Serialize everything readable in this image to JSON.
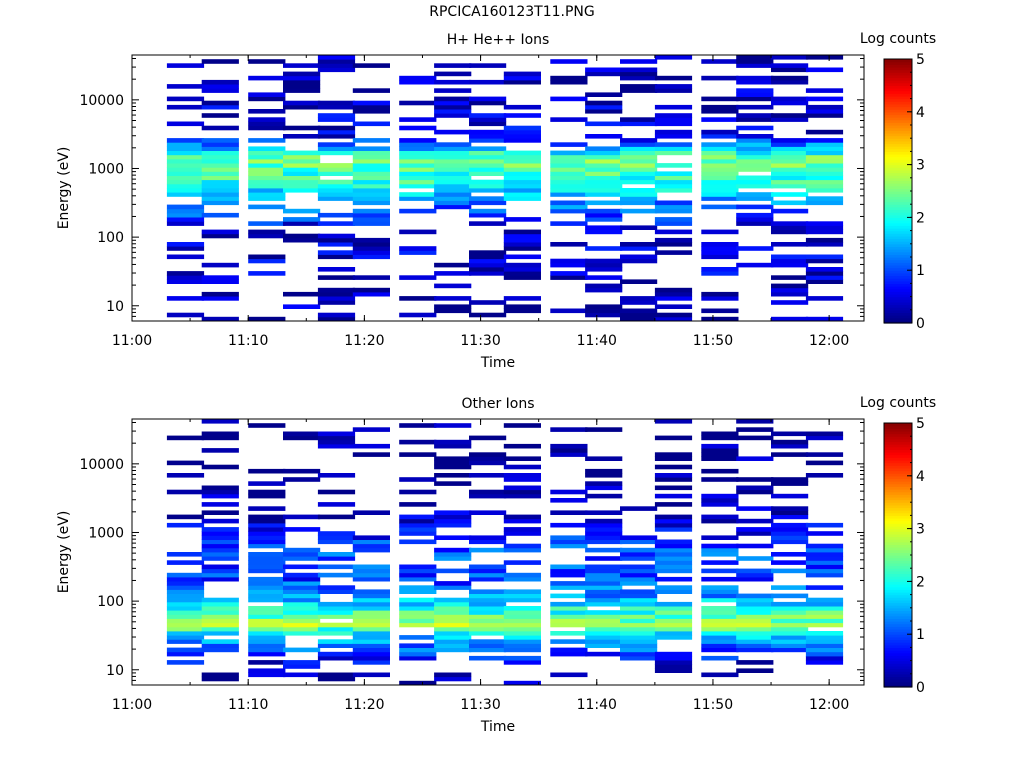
{
  "figure": {
    "title": "RPCICA160123T11.PNG"
  },
  "chart_data": [
    {
      "type": "heatmap",
      "title": "H+ He++ Ions",
      "xlabel": "Time",
      "ylabel": "Energy (eV)",
      "yscale": "log",
      "xlim": [
        "11:00",
        "12:03"
      ],
      "ylim": [
        6,
        45000
      ],
      "x_ticks": [
        "11:00",
        "11:10",
        "11:20",
        "11:30",
        "11:40",
        "11:50",
        "12:00"
      ],
      "y_ticks": [
        "10",
        "100",
        "1000",
        "10000"
      ],
      "colorbar": {
        "label": "Log counts",
        "min": 0,
        "max": 5,
        "ticks": [
          "0",
          "1",
          "2",
          "3",
          "4",
          "5"
        ]
      },
      "time_bins": [
        "11:03",
        "11:06",
        "11:10",
        "11:13",
        "11:16",
        "11:19",
        "11:23",
        "11:26",
        "11:29",
        "11:32",
        "11:36",
        "11:39",
        "11:42",
        "11:45",
        "11:49",
        "11:52",
        "11:55",
        "11:58"
      ],
      "energy_profile": [
        {
          "energy": 20,
          "log_counts": 0.2
        },
        {
          "energy": 40,
          "log_counts": 0.5
        },
        {
          "energy": 100,
          "log_counts": 0.3
        },
        {
          "energy": 300,
          "log_counts": 1.2
        },
        {
          "energy": 600,
          "log_counts": 2.0
        },
        {
          "energy": 1400,
          "log_counts": 2.4
        },
        {
          "energy": 3000,
          "log_counts": 0.5
        },
        {
          "energy": 10000,
          "log_counts": 0.3
        },
        {
          "energy": 30000,
          "log_counts": 0.2
        }
      ]
    },
    {
      "type": "heatmap",
      "title": "Other Ions",
      "xlabel": "Time",
      "ylabel": "Energy (eV)",
      "yscale": "log",
      "xlim": [
        "11:00",
        "12:03"
      ],
      "ylim": [
        6,
        45000
      ],
      "x_ticks": [
        "11:00",
        "11:10",
        "11:20",
        "11:30",
        "11:40",
        "11:50",
        "12:00"
      ],
      "y_ticks": [
        "10",
        "100",
        "1000",
        "10000"
      ],
      "colorbar": {
        "label": "Log counts",
        "min": 0,
        "max": 5,
        "ticks": [
          "0",
          "1",
          "2",
          "3",
          "4",
          "5"
        ]
      },
      "time_bins": [
        "11:03",
        "11:06",
        "11:10",
        "11:13",
        "11:16",
        "11:19",
        "11:23",
        "11:26",
        "11:29",
        "11:32",
        "11:36",
        "11:39",
        "11:42",
        "11:45",
        "11:49",
        "11:52",
        "11:55",
        "11:58"
      ],
      "energy_profile": [
        {
          "energy": 10,
          "log_counts": 0.2
        },
        {
          "energy": 30,
          "log_counts": 1.5
        },
        {
          "energy": 45,
          "log_counts": 2.6
        },
        {
          "energy": 60,
          "log_counts": 2.3
        },
        {
          "energy": 100,
          "log_counts": 1.6
        },
        {
          "energy": 200,
          "log_counts": 0.9
        },
        {
          "energy": 600,
          "log_counts": 1.0
        },
        {
          "energy": 1500,
          "log_counts": 0.3
        },
        {
          "energy": 5000,
          "log_counts": 0.1
        }
      ]
    }
  ]
}
